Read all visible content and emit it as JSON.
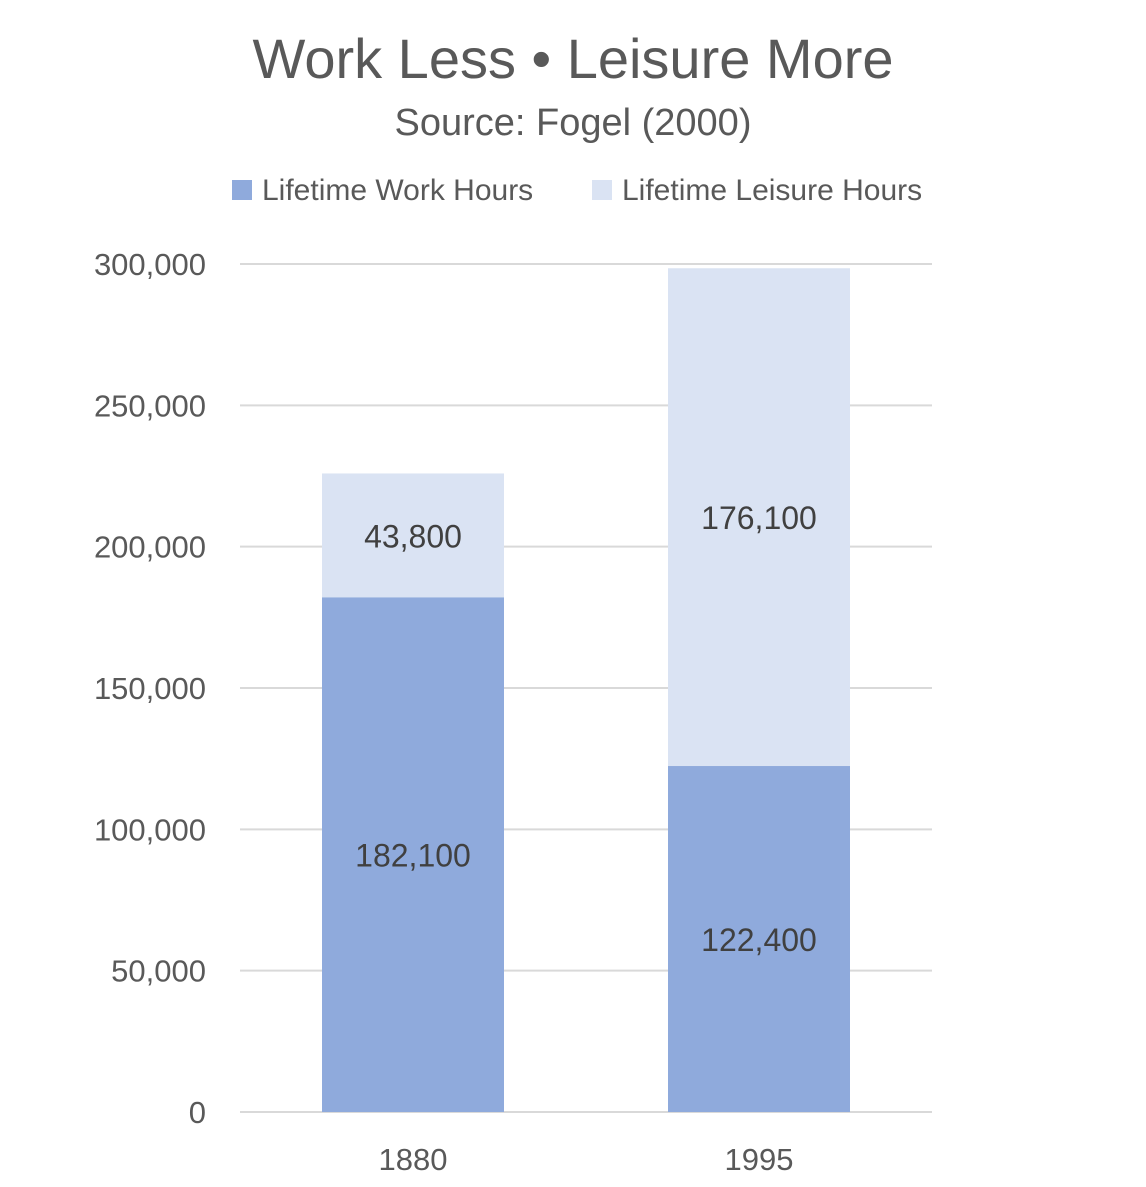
{
  "chart_data": {
    "type": "bar",
    "stacked": true,
    "title": "Work Less • Leisure More",
    "subtitle": "Source: Fogel (2000)",
    "xlabel": "",
    "ylabel": "",
    "categories": [
      "1880",
      "1995"
    ],
    "series": [
      {
        "name": "Lifetime Work Hours",
        "values": [
          182100,
          122400
        ],
        "color": "#8faadc"
      },
      {
        "name": "Lifetime Leisure Hours",
        "values": [
          43800,
          176100
        ],
        "color": "#dae3f3"
      }
    ],
    "ylim": [
      0,
      300000
    ],
    "yticks": [
      0,
      50000,
      100000,
      150000,
      200000,
      250000,
      300000
    ],
    "ytick_labels": [
      "0",
      "50,000",
      "100,000",
      "150,000",
      "200,000",
      "250,000",
      "300,000"
    ],
    "data_labels": [
      [
        "182,100",
        "122,400"
      ],
      [
        "43,800",
        "176,100"
      ]
    ],
    "grid": true,
    "legend_position": "top",
    "colors": {
      "text": "#595959",
      "label_text": "#404040",
      "gridline": "#d9d9d9"
    }
  }
}
